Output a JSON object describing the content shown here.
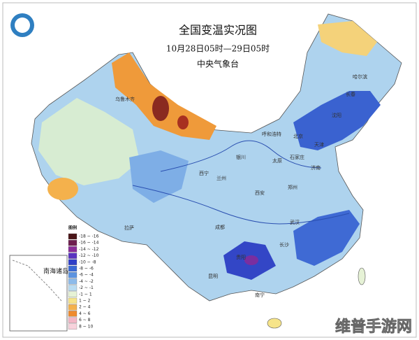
{
  "header": {
    "title": "全国变温实况图",
    "period": "10月28日05时—29日05时",
    "agency": "中央气象台"
  },
  "legend": {
    "title": "图例",
    "items": [
      {
        "label": "-18 ~ -16",
        "color": "#4a1518"
      },
      {
        "label": "-16 ~ -14",
        "color": "#6e1f4f"
      },
      {
        "label": "-14 ~ -12",
        "color": "#8a2d98"
      },
      {
        "label": "-12 ~ -10",
        "color": "#5a34c0"
      },
      {
        "label": "-10 ~ -8",
        "color": "#2f3fc8"
      },
      {
        "label": "-8 ~ -6",
        "color": "#3a6ad6"
      },
      {
        "label": "-6 ~ -4",
        "color": "#5c93e0"
      },
      {
        "label": "-4 ~ -2",
        "color": "#8dbbea"
      },
      {
        "label": "-2 ~ -1",
        "color": "#b9dcf2"
      },
      {
        "label": "-1 ~ 1",
        "color": "#e6f2d6"
      },
      {
        "label": "1 ~ 2",
        "color": "#f6e48a"
      },
      {
        "label": "2 ~ 4",
        "color": "#f4b14c"
      },
      {
        "label": "4 ~ 6",
        "color": "#ee8a2e"
      },
      {
        "label": "6 ~ 8",
        "color": "#f3b6c6"
      },
      {
        "label": "8 ~ 10",
        "color": "#f8d2dc"
      }
    ]
  },
  "cities": [
    "乌鲁木齐",
    "哈尔滨",
    "长春",
    "沈阳",
    "北京",
    "天津",
    "呼和浩特",
    "石家庄",
    "太原",
    "济南",
    "银川",
    "兰州",
    "西宁",
    "郑州",
    "西安",
    "拉萨",
    "成都",
    "武汉",
    "长沙",
    "昆明",
    "南宁",
    "贵阳"
  ],
  "inset": {
    "label": "南海诸岛"
  },
  "watermark": "维普手游网"
}
